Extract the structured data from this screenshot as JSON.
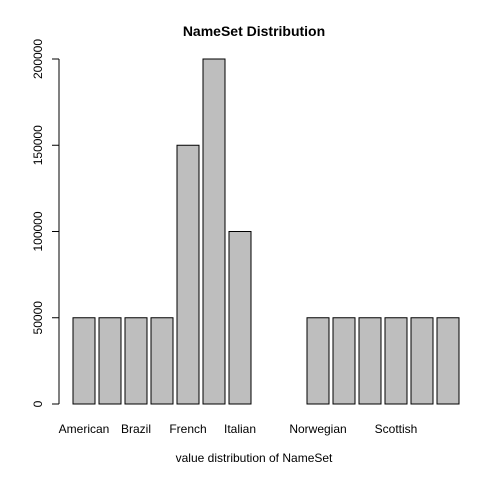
{
  "chart_data": {
    "type": "bar",
    "title": "NameSet Distribution",
    "xlabel": "value distribution of NameSet",
    "ylabel": "",
    "categories": [
      "American",
      "",
      "Brazil",
      "",
      "French",
      "",
      "Italian",
      "",
      "",
      "Norwegian",
      "",
      "",
      "Scottish",
      "",
      ""
    ],
    "values": [
      50000,
      50000,
      50000,
      50000,
      150000,
      200000,
      100000,
      0,
      0,
      50000,
      50000,
      50000,
      50000,
      50000,
      50000
    ],
    "yticks": [
      0,
      50000,
      100000,
      150000,
      200000
    ],
    "ylim": [
      0,
      200000
    ],
    "grid": false,
    "colors": {
      "bar_fill": "#bebebe",
      "bar_stroke": "#000000"
    }
  }
}
